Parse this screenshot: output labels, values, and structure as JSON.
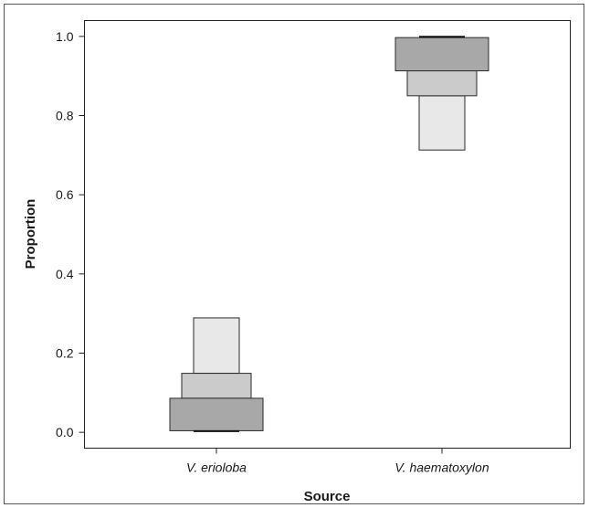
{
  "chart_data": {
    "type": "letter-value-plot",
    "xlabel": "Source",
    "ylabel": "Proportion",
    "ylim": [
      -0.04,
      1.04
    ],
    "yticks": [
      0.0,
      0.2,
      0.4,
      0.6,
      0.8,
      1.0
    ],
    "ytick_labels": [
      "0.0",
      "0.2",
      "0.4",
      "0.6",
      "0.8",
      "1.0"
    ],
    "grid": false,
    "categories": [
      "V. erioloba",
      "V. haematoxylon"
    ],
    "colors": {
      "inner_box": "#a8a8a8",
      "middle_box": "#cbcbcb",
      "outer_box": "#e8e8e8",
      "stroke": "#2a2a2a"
    },
    "series": [
      {
        "category": "V. erioloba",
        "boxes": [
          {
            "level": "outer",
            "low": 0.149,
            "high": 0.289
          },
          {
            "level": "middle",
            "low": 0.086,
            "high": 0.149
          },
          {
            "level": "inner",
            "low": 0.004,
            "high": 0.086
          }
        ],
        "median": 0.003
      },
      {
        "category": "V. haematoxylon",
        "boxes": [
          {
            "level": "outer",
            "low": 0.713,
            "high": 0.85
          },
          {
            "level": "middle",
            "low": 0.85,
            "high": 0.913
          },
          {
            "level": "inner",
            "low": 0.913,
            "high": 0.997
          }
        ],
        "median": 0.999
      }
    ]
  }
}
